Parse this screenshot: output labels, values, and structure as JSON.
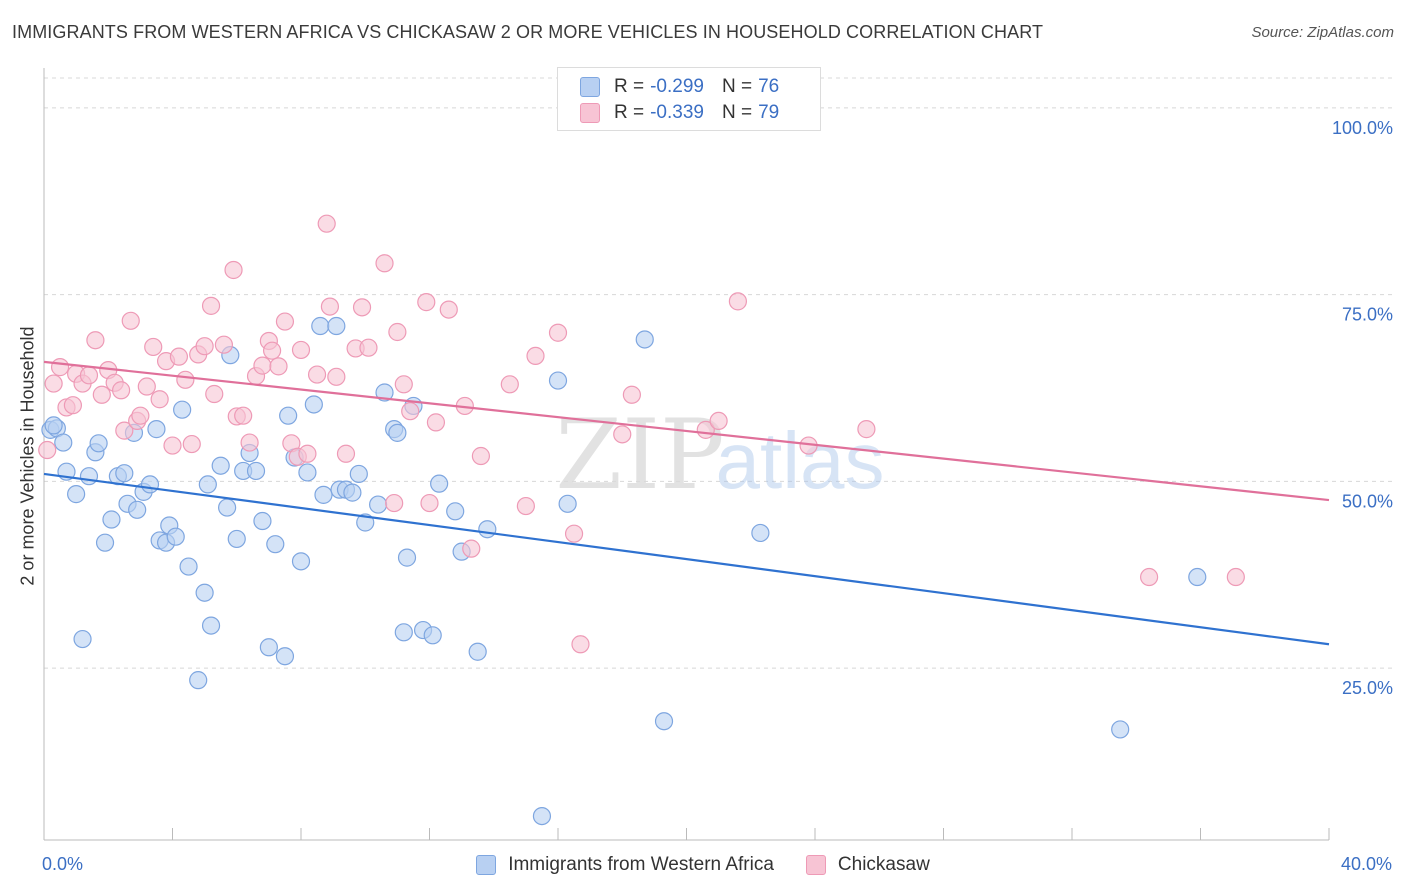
{
  "header": {
    "title": "IMMIGRANTS FROM WESTERN AFRICA VS CHICKASAW 2 OR MORE VEHICLES IN HOUSEHOLD CORRELATION CHART",
    "source": "Source: ZipAtlas.com"
  },
  "legend_top": {
    "rows": [
      {
        "r_label": "R =",
        "r_value": "-0.299",
        "n_label": "N =",
        "n_value": "76"
      },
      {
        "r_label": "R =",
        "r_value": "-0.339",
        "n_label": "N =",
        "n_value": "79"
      }
    ]
  },
  "watermark": {
    "zip": "ZIP",
    "atlas": "atlas"
  },
  "colors": {
    "blue_fill": "#b8d0f2",
    "blue_stroke": "#7ea6e0",
    "blue_line": "#2f72d0",
    "pink_fill": "#f7c4d4",
    "pink_stroke": "#ee9ab6",
    "pink_line": "#e0709a",
    "tick_label": "#3b6fc4",
    "grid": "#d8d8d8"
  },
  "chart_data": {
    "type": "scatter",
    "title": "IMMIGRANTS FROM WESTERN AFRICA VS CHICKASAW 2 OR MORE VEHICLES IN HOUSEHOLD CORRELATION CHART",
    "xlabel": "",
    "ylabel": "2 or more Vehicles in Household",
    "xlim": [
      0,
      40
    ],
    "ylim": [
      2,
      104
    ],
    "x_tick_labels": [
      "0.0%",
      "40.0%"
    ],
    "y_ticks": [
      25,
      50,
      75,
      100
    ],
    "y_tick_labels": [
      "25.0%",
      "50.0%",
      "75.0%",
      "100.0%"
    ],
    "grid": true,
    "legend_position": "bottom",
    "series": [
      {
        "name": "Immigrants from Western Africa",
        "color": "#b8d0f2",
        "trend": {
          "x": [
            0,
            40
          ],
          "y": [
            51.0,
            28.2
          ]
        },
        "points": [
          [
            0.2,
            56.9
          ],
          [
            0.4,
            57.1
          ],
          [
            0.6,
            55.2
          ],
          [
            0.7,
            51.3
          ],
          [
            1.0,
            48.3
          ],
          [
            1.2,
            28.9
          ],
          [
            1.4,
            50.7
          ],
          [
            1.6,
            53.9
          ],
          [
            1.7,
            55.1
          ],
          [
            1.9,
            41.8
          ],
          [
            2.1,
            44.9
          ],
          [
            2.3,
            50.7
          ],
          [
            2.5,
            51.1
          ],
          [
            2.6,
            47.0
          ],
          [
            2.8,
            56.5
          ],
          [
            2.9,
            46.2
          ],
          [
            3.1,
            48.6
          ],
          [
            3.3,
            49.6
          ],
          [
            3.5,
            57.0
          ],
          [
            3.6,
            42.1
          ],
          [
            3.8,
            41.8
          ],
          [
            3.9,
            44.1
          ],
          [
            4.1,
            42.6
          ],
          [
            4.3,
            59.6
          ],
          [
            4.5,
            38.6
          ],
          [
            4.8,
            23.4
          ],
          [
            5.0,
            35.1
          ],
          [
            5.1,
            49.6
          ],
          [
            5.2,
            30.7
          ],
          [
            5.5,
            52.1
          ],
          [
            5.7,
            46.5
          ],
          [
            5.8,
            66.9
          ],
          [
            6.0,
            42.3
          ],
          [
            6.2,
            51.4
          ],
          [
            6.4,
            53.8
          ],
          [
            6.6,
            51.4
          ],
          [
            6.8,
            44.7
          ],
          [
            7.0,
            27.8
          ],
          [
            7.2,
            41.6
          ],
          [
            7.5,
            26.6
          ],
          [
            7.6,
            58.8
          ],
          [
            7.8,
            53.2
          ],
          [
            8.0,
            39.3
          ],
          [
            8.2,
            51.2
          ],
          [
            8.4,
            60.3
          ],
          [
            8.6,
            70.8
          ],
          [
            8.7,
            48.2
          ],
          [
            9.1,
            70.8
          ],
          [
            9.2,
            48.9
          ],
          [
            9.4,
            48.9
          ],
          [
            9.6,
            48.5
          ],
          [
            9.8,
            51.0
          ],
          [
            10.0,
            44.5
          ],
          [
            10.4,
            46.9
          ],
          [
            10.6,
            61.9
          ],
          [
            10.9,
            57.0
          ],
          [
            11.0,
            56.5
          ],
          [
            11.2,
            29.8
          ],
          [
            11.3,
            39.8
          ],
          [
            11.5,
            60.1
          ],
          [
            11.8,
            30.1
          ],
          [
            12.1,
            29.4
          ],
          [
            12.3,
            49.7
          ],
          [
            12.8,
            46.0
          ],
          [
            13.0,
            40.6
          ],
          [
            13.5,
            27.2
          ],
          [
            13.8,
            43.6
          ],
          [
            15.5,
            5.2
          ],
          [
            16.0,
            63.5
          ],
          [
            16.3,
            47.0
          ],
          [
            18.7,
            69.0
          ],
          [
            19.3,
            17.9
          ],
          [
            22.3,
            43.1
          ],
          [
            33.5,
            16.8
          ],
          [
            35.9,
            37.2
          ],
          [
            0.3,
            57.5
          ]
        ]
      },
      {
        "name": "Chickasaw",
        "color": "#f7c4d4",
        "trend": {
          "x": [
            0,
            40
          ],
          "y": [
            66.0,
            47.5
          ]
        },
        "points": [
          [
            0.1,
            54.2
          ],
          [
            0.3,
            63.1
          ],
          [
            0.5,
            65.3
          ],
          [
            0.7,
            59.9
          ],
          [
            0.9,
            60.2
          ],
          [
            1.0,
            64.4
          ],
          [
            1.2,
            63.1
          ],
          [
            1.4,
            64.2
          ],
          [
            1.6,
            68.9
          ],
          [
            1.8,
            61.6
          ],
          [
            2.0,
            64.9
          ],
          [
            2.2,
            63.2
          ],
          [
            2.4,
            62.2
          ],
          [
            2.5,
            56.8
          ],
          [
            2.7,
            71.5
          ],
          [
            2.9,
            58.1
          ],
          [
            3.0,
            58.8
          ],
          [
            3.2,
            62.7
          ],
          [
            3.4,
            68.0
          ],
          [
            3.6,
            61.0
          ],
          [
            3.8,
            66.1
          ],
          [
            4.0,
            54.8
          ],
          [
            4.2,
            66.7
          ],
          [
            4.4,
            63.6
          ],
          [
            4.6,
            55.0
          ],
          [
            4.8,
            67.0
          ],
          [
            5.0,
            68.1
          ],
          [
            5.2,
            73.5
          ],
          [
            5.3,
            61.7
          ],
          [
            5.6,
            68.3
          ],
          [
            5.9,
            78.3
          ],
          [
            6.0,
            58.7
          ],
          [
            6.2,
            58.8
          ],
          [
            6.4,
            55.2
          ],
          [
            6.6,
            64.1
          ],
          [
            6.8,
            65.5
          ],
          [
            7.0,
            68.8
          ],
          [
            7.1,
            67.5
          ],
          [
            7.3,
            65.4
          ],
          [
            7.5,
            71.4
          ],
          [
            7.7,
            55.1
          ],
          [
            7.9,
            53.3
          ],
          [
            8.0,
            67.6
          ],
          [
            8.2,
            53.7
          ],
          [
            8.5,
            64.3
          ],
          [
            8.8,
            84.5
          ],
          [
            8.9,
            73.4
          ],
          [
            9.1,
            64.0
          ],
          [
            9.4,
            53.7
          ],
          [
            9.7,
            67.8
          ],
          [
            9.9,
            73.3
          ],
          [
            10.1,
            67.9
          ],
          [
            10.6,
            79.2
          ],
          [
            10.9,
            47.1
          ],
          [
            11.0,
            70.0
          ],
          [
            11.2,
            63.0
          ],
          [
            11.4,
            59.4
          ],
          [
            11.9,
            74.0
          ],
          [
            12.0,
            47.1
          ],
          [
            12.2,
            57.9
          ],
          [
            12.6,
            73.0
          ],
          [
            13.1,
            60.1
          ],
          [
            13.3,
            41.0
          ],
          [
            13.6,
            53.4
          ],
          [
            14.5,
            63.0
          ],
          [
            15.0,
            46.7
          ],
          [
            15.3,
            66.8
          ],
          [
            16.0,
            69.9
          ],
          [
            16.5,
            43.0
          ],
          [
            16.7,
            28.2
          ],
          [
            18.0,
            56.3
          ],
          [
            18.3,
            61.6
          ],
          [
            20.6,
            56.9
          ],
          [
            21.0,
            58.1
          ],
          [
            21.6,
            74.1
          ],
          [
            23.8,
            54.8
          ],
          [
            25.6,
            57.0
          ],
          [
            34.4,
            37.2
          ],
          [
            37.1,
            37.2
          ]
        ]
      }
    ]
  },
  "legend_bottom": {
    "items": [
      "Immigrants from Western Africa",
      "Chickasaw"
    ]
  }
}
